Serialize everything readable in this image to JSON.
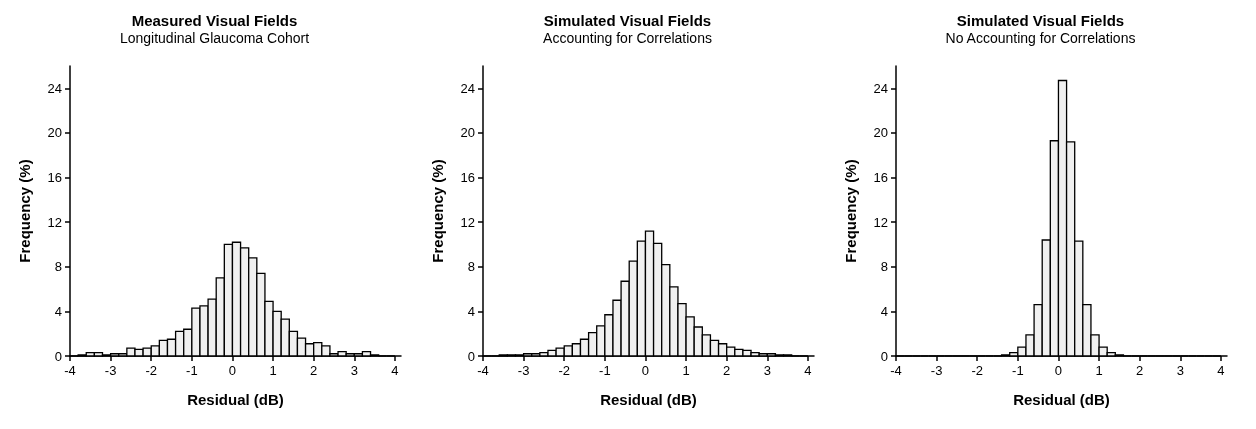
{
  "chart_data": [
    {
      "type": "histogram",
      "title": "Measured Visual Fields",
      "subtitle": "Longitudinal Glaucoma Cohort",
      "xlabel": "Residual (dB)",
      "ylabel": "Frequency (%)",
      "color": "#f0f0f0",
      "bins": [
        -4,
        -3.8,
        -3.6,
        -3.4,
        -3.2,
        -3,
        -2.8,
        -2.6,
        -2.4,
        -2.2,
        -2,
        -1.8,
        -1.6,
        -1.4,
        -1.2,
        -1,
        -0.8,
        -0.6,
        -0.4,
        -0.2,
        0,
        0.2,
        0.4,
        0.6,
        0.8,
        1,
        1.2,
        1.4,
        1.6,
        1.8,
        2,
        2.2,
        2.4,
        2.6,
        2.8,
        3,
        3.2,
        3.4,
        3.6,
        3.8,
        4
      ],
      "values": [
        0,
        0.1,
        0.3,
        0.3,
        0.1,
        0.2,
        0.2,
        0.7,
        0.6,
        0.7,
        0.9,
        1.4,
        1.5,
        2.2,
        2.4,
        4.3,
        4.5,
        5.1,
        7,
        10,
        10.2,
        9.7,
        8.8,
        7.4,
        4.9,
        4,
        3.3,
        2.2,
        1.6,
        1.1,
        1.2,
        0.9,
        0.2,
        0.4,
        0.2,
        0.2,
        0.4,
        0.1,
        0,
        0
      ],
      "xlim": [
        -4,
        4.15
      ],
      "xticks": [
        -4,
        -3,
        -2,
        -1,
        0,
        1,
        2,
        3,
        4
      ],
      "ylim": [
        0,
        26
      ],
      "yticks": [
        0,
        4,
        8,
        12,
        16,
        20,
        24
      ],
      "grid": false
    },
    {
      "type": "histogram",
      "title": "Simulated Visual Fields",
      "subtitle": "Accounting for Correlations",
      "xlabel": "Residual (dB)",
      "ylabel": "Frequency (%)",
      "color": "#f0f0f0",
      "bins": [
        -4,
        -3.8,
        -3.6,
        -3.4,
        -3.2,
        -3,
        -2.8,
        -2.6,
        -2.4,
        -2.2,
        -2,
        -1.8,
        -1.6,
        -1.4,
        -1.2,
        -1,
        -0.8,
        -0.6,
        -0.4,
        -0.2,
        0,
        0.2,
        0.4,
        0.6,
        0.8,
        1,
        1.2,
        1.4,
        1.6,
        1.8,
        2,
        2.2,
        2.4,
        2.6,
        2.8,
        3,
        3.2,
        3.4,
        3.6,
        3.8,
        4
      ],
      "values": [
        0,
        0,
        0.1,
        0.1,
        0.1,
        0.2,
        0.2,
        0.3,
        0.5,
        0.7,
        0.9,
        1.1,
        1.5,
        2.1,
        2.7,
        3.7,
        5,
        6.7,
        8.5,
        10.3,
        11.2,
        10.1,
        8.2,
        6.2,
        4.7,
        3.5,
        2.6,
        1.9,
        1.4,
        1.1,
        0.8,
        0.6,
        0.5,
        0.3,
        0.2,
        0.2,
        0.1,
        0.1,
        0,
        0
      ],
      "xlim": [
        -4,
        4.15
      ],
      "xticks": [
        -4,
        -3,
        -2,
        -1,
        0,
        1,
        2,
        3,
        4
      ],
      "ylim": [
        0,
        26
      ],
      "yticks": [
        0,
        4,
        8,
        12,
        16,
        20,
        24
      ],
      "grid": false
    },
    {
      "type": "histogram",
      "title": "Simulated Visual Fields",
      "subtitle": "No Accounting for Correlations",
      "xlabel": "Residual (dB)",
      "ylabel": "Frequency (%)",
      "color": "#f0f0f0",
      "bins": [
        -4,
        -3.8,
        -3.6,
        -3.4,
        -3.2,
        -3,
        -2.8,
        -2.6,
        -2.4,
        -2.2,
        -2,
        -1.8,
        -1.6,
        -1.4,
        -1.2,
        -1,
        -0.8,
        -0.6,
        -0.4,
        -0.2,
        0,
        0.2,
        0.4,
        0.6,
        0.8,
        1,
        1.2,
        1.4,
        1.6,
        1.8,
        2,
        2.2,
        2.4,
        2.6,
        2.8,
        3,
        3.2,
        3.4,
        3.6,
        3.8,
        4
      ],
      "values": [
        0,
        0,
        0,
        0,
        0,
        0,
        0,
        0,
        0,
        0,
        0,
        0,
        0,
        0.1,
        0.3,
        0.8,
        1.9,
        4.6,
        10.4,
        19.3,
        24.7,
        19.2,
        10.3,
        4.6,
        1.9,
        0.8,
        0.3,
        0.1,
        0,
        0,
        0,
        0,
        0,
        0,
        0,
        0,
        0,
        0,
        0,
        0
      ],
      "xlim": [
        -4,
        4.15
      ],
      "xticks": [
        -4,
        -3,
        -2,
        -1,
        0,
        1,
        2,
        3,
        4
      ],
      "ylim": [
        0,
        26
      ],
      "yticks": [
        0,
        4,
        8,
        12,
        16,
        20,
        24
      ],
      "grid": false
    }
  ]
}
